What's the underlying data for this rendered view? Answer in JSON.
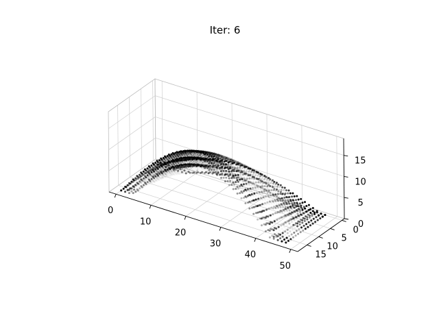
{
  "chart_data": {
    "type": "scatter",
    "title": "Iter: 6",
    "projection": "3d",
    "grid": true,
    "xlabel": "",
    "ylabel": "",
    "zlabel": "",
    "x_ticks": [
      0,
      10,
      20,
      30,
      40,
      50
    ],
    "y_ticks": [
      0,
      5,
      10,
      15
    ],
    "z_ticks": [
      0,
      5,
      10,
      15
    ],
    "xlim": [
      -2,
      52
    ],
    "ylim": [
      -1,
      19
    ],
    "zlim": [
      0,
      19
    ],
    "point_color": "#000000",
    "pane_color": "#f2f2f2",
    "grid_color": "#cccccc"
  }
}
